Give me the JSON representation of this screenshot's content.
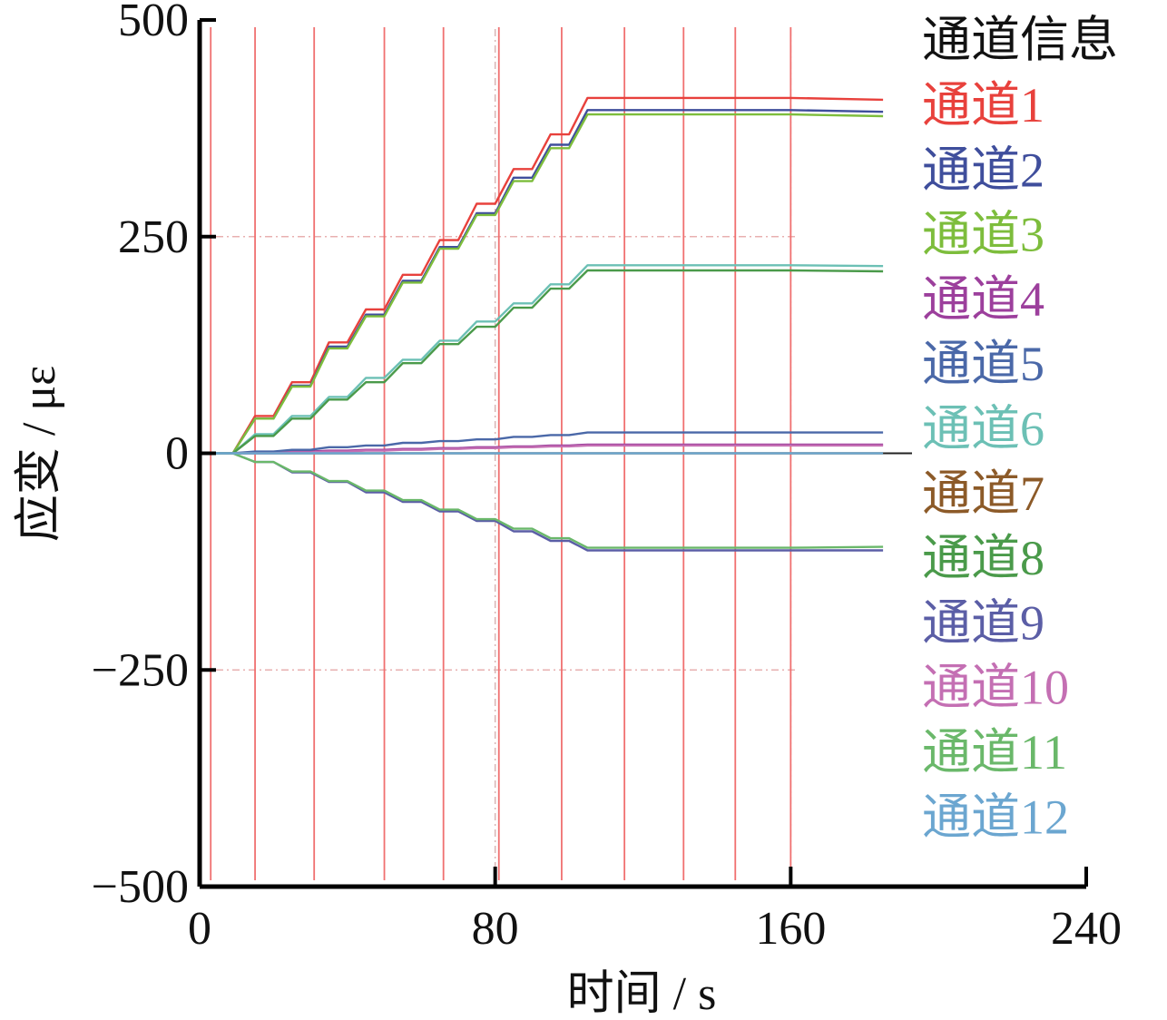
{
  "chart_data": {
    "type": "line",
    "xlabel": "时间 / s",
    "ylabel": "应变 / με",
    "xlim": [
      0,
      240
    ],
    "ylim": [
      -500,
      500
    ],
    "xticks": [
      "0",
      "80",
      "160",
      "240"
    ],
    "yticks": [
      "500",
      "250",
      "0",
      "−250",
      "−500"
    ],
    "grid": "dash-dot at 250, 0, −250 and at 80, 160",
    "legend_title": "通道信息",
    "legend_position": "right",
    "markers_x": [
      3,
      15,
      31,
      50,
      66,
      81,
      98,
      115,
      131,
      145,
      160
    ],
    "marker_color": "#f07070",
    "step_times": [
      0,
      9,
      15,
      20,
      25,
      30,
      35,
      40,
      45,
      50,
      55,
      60,
      65,
      70,
      75,
      80,
      85,
      90,
      95,
      100,
      105,
      110,
      115,
      120,
      125,
      130,
      135,
      140,
      145,
      150,
      155,
      160,
      185
    ],
    "series": [
      {
        "name": "通道1",
        "color": "#e8413c",
        "values": [
          0,
          0,
          43,
          43,
          82,
          82,
          128,
          128,
          166,
          166,
          206,
          206,
          246,
          246,
          288,
          288,
          328,
          328,
          368,
          368,
          410,
          410,
          410,
          410,
          410,
          410,
          410,
          410,
          410,
          410,
          410,
          410,
          408
        ]
      },
      {
        "name": "通道2",
        "color": "#3f4e9c",
        "values": [
          0,
          0,
          40,
          40,
          78,
          78,
          123,
          123,
          160,
          160,
          199,
          199,
          238,
          238,
          277,
          277,
          318,
          318,
          356,
          356,
          396,
          396,
          396,
          396,
          396,
          396,
          396,
          396,
          396,
          396,
          396,
          396,
          394
        ]
      },
      {
        "name": "通道3",
        "color": "#7dbd3c",
        "values": [
          0,
          0,
          40,
          40,
          77,
          77,
          121,
          121,
          158,
          158,
          197,
          197,
          236,
          236,
          275,
          275,
          314,
          314,
          352,
          352,
          391,
          391,
          391,
          391,
          391,
          391,
          391,
          391,
          391,
          391,
          391,
          391,
          389
        ]
      },
      {
        "name": "通道4",
        "color": "#9c3f9c",
        "values": [
          0,
          0,
          1,
          1,
          2,
          2,
          3,
          3,
          4,
          4,
          5,
          5,
          6,
          6,
          7,
          7,
          8,
          8,
          9,
          9,
          10,
          10,
          10,
          10,
          10,
          10,
          10,
          10,
          10,
          10,
          10,
          10,
          10
        ]
      },
      {
        "name": "通道5",
        "color": "#4a68a8",
        "values": [
          0,
          0,
          2,
          2,
          4,
          4,
          7,
          7,
          9,
          9,
          12,
          12,
          14,
          14,
          16,
          16,
          19,
          19,
          21,
          21,
          24,
          24,
          24,
          24,
          24,
          24,
          24,
          24,
          24,
          24,
          24,
          24,
          24
        ]
      },
      {
        "name": "通道6",
        "color": "#6cc0b5",
        "values": [
          0,
          0,
          22,
          22,
          43,
          43,
          65,
          65,
          87,
          87,
          108,
          108,
          130,
          130,
          152,
          152,
          173,
          173,
          195,
          195,
          217,
          217,
          217,
          217,
          217,
          217,
          217,
          217,
          217,
          217,
          217,
          217,
          216
        ]
      },
      {
        "name": "通道7",
        "color": "#8c5a28",
        "values": [
          0,
          0,
          0,
          0,
          0,
          0,
          0,
          0,
          0,
          0,
          0,
          0,
          0,
          0,
          0,
          0,
          0,
          0,
          0,
          0,
          0,
          0,
          0,
          0,
          0,
          0,
          0,
          0,
          0,
          0,
          0,
          0,
          0
        ]
      },
      {
        "name": "通道8",
        "color": "#4a9a4a",
        "values": [
          0,
          0,
          20,
          20,
          40,
          40,
          62,
          62,
          82,
          82,
          104,
          104,
          126,
          126,
          146,
          146,
          168,
          168,
          190,
          190,
          211,
          211,
          211,
          211,
          211,
          211,
          211,
          211,
          211,
          211,
          211,
          211,
          210
        ]
      },
      {
        "name": "通道9",
        "color": "#5b5ea6",
        "values": [
          0,
          0,
          -10,
          -10,
          -22,
          -22,
          -33,
          -33,
          -45,
          -45,
          -56,
          -56,
          -67,
          -67,
          -78,
          -78,
          -90,
          -90,
          -101,
          -101,
          -112,
          -112,
          -112,
          -112,
          -112,
          -112,
          -112,
          -112,
          -112,
          -112,
          -112,
          -112,
          -112
        ]
      },
      {
        "name": "通道10",
        "color": "#c46fb3",
        "values": [
          0,
          0,
          0,
          0,
          1,
          1,
          2,
          2,
          3,
          3,
          4,
          4,
          5,
          5,
          6,
          6,
          7,
          7,
          8,
          8,
          9,
          9,
          9,
          9,
          9,
          9,
          9,
          9,
          9,
          9,
          9,
          9,
          9
        ]
      },
      {
        "name": "通道11",
        "color": "#6ab86a",
        "values": [
          0,
          0,
          -10,
          -10,
          -21,
          -21,
          -32,
          -32,
          -43,
          -43,
          -54,
          -54,
          -65,
          -65,
          -76,
          -76,
          -87,
          -87,
          -98,
          -98,
          -109,
          -109,
          -109,
          -109,
          -109,
          -109,
          -109,
          -109,
          -109,
          -109,
          -109,
          -109,
          -108
        ]
      },
      {
        "name": "通道12",
        "color": "#6ba6d0",
        "values": [
          0,
          0,
          0,
          0,
          0,
          0,
          0,
          0,
          0,
          0,
          0,
          0,
          0,
          0,
          0,
          0,
          0,
          0,
          0,
          0,
          0,
          0,
          0,
          0,
          0,
          0,
          0,
          0,
          0,
          0,
          0,
          0,
          0
        ]
      }
    ]
  }
}
